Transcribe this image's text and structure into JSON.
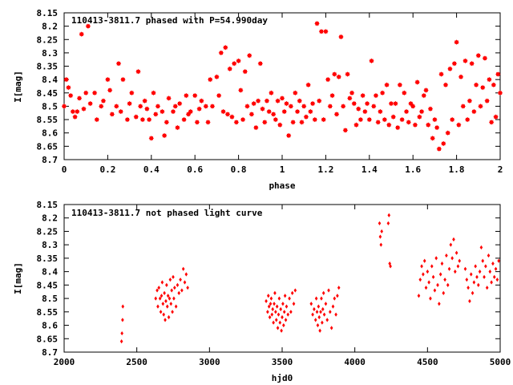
{
  "chart_data": [
    {
      "type": "scatter",
      "title": "110413-3811.7 phased with P=54.990day",
      "xlabel": "phase",
      "ylabel": "I[mag]",
      "xlim": [
        0,
        2
      ],
      "ylim": [
        8.15,
        8.7
      ],
      "y_inverted": true,
      "grid": false,
      "marker_color": "#ff0000",
      "x_ticks": [
        "0",
        "0.2",
        "0.4",
        "0.6",
        "0.8",
        "1",
        "1.2",
        "1.4",
        "1.6",
        "1.8",
        "2"
      ],
      "y_ticks": [
        "8.15",
        "8.2",
        "8.25",
        "8.3",
        "8.35",
        "8.4",
        "8.45",
        "8.5",
        "8.55",
        "8.6",
        "8.65",
        "8.7"
      ],
      "points": [
        [
          0.0,
          8.5
        ],
        [
          0.01,
          8.4
        ],
        [
          0.02,
          8.43
        ],
        [
          0.03,
          8.46
        ],
        [
          0.04,
          8.52
        ],
        [
          0.05,
          8.54
        ],
        [
          0.06,
          8.52
        ],
        [
          0.07,
          8.47
        ],
        [
          0.08,
          8.23
        ],
        [
          0.09,
          8.51
        ],
        [
          0.1,
          8.45
        ],
        [
          0.11,
          8.2
        ],
        [
          0.12,
          8.49
        ],
        [
          0.14,
          8.45
        ],
        [
          0.15,
          8.55
        ],
        [
          0.17,
          8.5
        ],
        [
          0.18,
          8.48
        ],
        [
          0.2,
          8.4
        ],
        [
          0.21,
          8.44
        ],
        [
          0.22,
          8.53
        ],
        [
          0.24,
          8.5
        ],
        [
          0.25,
          8.34
        ],
        [
          0.26,
          8.52
        ],
        [
          0.27,
          8.4
        ],
        [
          0.29,
          8.55
        ],
        [
          0.3,
          8.49
        ],
        [
          0.31,
          8.45
        ],
        [
          0.33,
          8.54
        ],
        [
          0.34,
          8.37
        ],
        [
          0.35,
          8.5
        ],
        [
          0.36,
          8.55
        ],
        [
          0.37,
          8.48
        ],
        [
          0.38,
          8.51
        ],
        [
          0.39,
          8.55
        ],
        [
          0.4,
          8.62
        ],
        [
          0.41,
          8.45
        ],
        [
          0.42,
          8.53
        ],
        [
          0.43,
          8.5
        ],
        [
          0.45,
          8.52
        ],
        [
          0.46,
          8.61
        ],
        [
          0.47,
          8.56
        ],
        [
          0.48,
          8.47
        ],
        [
          0.5,
          8.52
        ],
        [
          0.51,
          8.5
        ],
        [
          0.52,
          8.58
        ],
        [
          0.53,
          8.49
        ],
        [
          0.55,
          8.55
        ],
        [
          0.56,
          8.46
        ],
        [
          0.57,
          8.53
        ],
        [
          0.58,
          8.52
        ],
        [
          0.6,
          8.46
        ],
        [
          0.61,
          8.56
        ],
        [
          0.62,
          8.51
        ],
        [
          0.63,
          8.48
        ],
        [
          0.65,
          8.5
        ],
        [
          0.66,
          8.56
        ],
        [
          0.67,
          8.4
        ],
        [
          0.68,
          8.5
        ],
        [
          0.7,
          8.39
        ],
        [
          0.71,
          8.46
        ],
        [
          0.72,
          8.3
        ],
        [
          0.73,
          8.52
        ],
        [
          0.74,
          8.28
        ],
        [
          0.75,
          8.53
        ],
        [
          0.76,
          8.36
        ],
        [
          0.77,
          8.54
        ],
        [
          0.78,
          8.34
        ],
        [
          0.79,
          8.56
        ],
        [
          0.8,
          8.33
        ],
        [
          0.81,
          8.44
        ],
        [
          0.82,
          8.55
        ],
        [
          0.83,
          8.37
        ],
        [
          0.84,
          8.5
        ],
        [
          0.85,
          8.31
        ],
        [
          0.86,
          8.53
        ],
        [
          0.87,
          8.49
        ],
        [
          0.88,
          8.58
        ],
        [
          0.89,
          8.48
        ],
        [
          0.9,
          8.34
        ],
        [
          0.91,
          8.51
        ],
        [
          0.92,
          8.56
        ],
        [
          0.93,
          8.48
        ],
        [
          0.94,
          8.52
        ],
        [
          0.95,
          8.45
        ],
        [
          0.96,
          8.53
        ],
        [
          0.97,
          8.55
        ],
        [
          0.98,
          8.48
        ],
        [
          0.99,
          8.57
        ],
        [
          1.0,
          8.47
        ],
        [
          1.01,
          8.52
        ],
        [
          1.02,
          8.49
        ],
        [
          1.03,
          8.61
        ],
        [
          1.04,
          8.5
        ],
        [
          1.05,
          8.56
        ],
        [
          1.06,
          8.45
        ],
        [
          1.07,
          8.52
        ],
        [
          1.08,
          8.48
        ],
        [
          1.09,
          8.56
        ],
        [
          1.1,
          8.5
        ],
        [
          1.11,
          8.54
        ],
        [
          1.12,
          8.42
        ],
        [
          1.13,
          8.52
        ],
        [
          1.14,
          8.49
        ],
        [
          1.15,
          8.55
        ],
        [
          1.16,
          8.19
        ],
        [
          1.17,
          8.48
        ],
        [
          1.18,
          8.22
        ],
        [
          1.19,
          8.55
        ],
        [
          1.2,
          8.22
        ],
        [
          1.21,
          8.4
        ],
        [
          1.22,
          8.5
        ],
        [
          1.23,
          8.46
        ],
        [
          1.24,
          8.38
        ],
        [
          1.25,
          8.53
        ],
        [
          1.26,
          8.39
        ],
        [
          1.27,
          8.24
        ],
        [
          1.28,
          8.5
        ],
        [
          1.29,
          8.59
        ],
        [
          1.3,
          8.38
        ],
        [
          1.31,
          8.47
        ],
        [
          1.32,
          8.45
        ],
        [
          1.33,
          8.49
        ],
        [
          1.34,
          8.57
        ],
        [
          1.35,
          8.51
        ],
        [
          1.36,
          8.55
        ],
        [
          1.37,
          8.46
        ],
        [
          1.38,
          8.52
        ],
        [
          1.39,
          8.49
        ],
        [
          1.4,
          8.55
        ],
        [
          1.41,
          8.33
        ],
        [
          1.42,
          8.5
        ],
        [
          1.43,
          8.46
        ],
        [
          1.44,
          8.56
        ],
        [
          1.45,
          8.52
        ],
        [
          1.46,
          8.45
        ],
        [
          1.47,
          8.55
        ],
        [
          1.48,
          8.42
        ],
        [
          1.49,
          8.57
        ],
        [
          1.5,
          8.49
        ],
        [
          1.51,
          8.54
        ],
        [
          1.52,
          8.49
        ],
        [
          1.53,
          8.58
        ],
        [
          1.54,
          8.42
        ],
        [
          1.55,
          8.55
        ],
        [
          1.56,
          8.45
        ],
        [
          1.57,
          8.52
        ],
        [
          1.58,
          8.56
        ],
        [
          1.59,
          8.49
        ],
        [
          1.6,
          8.5
        ],
        [
          1.61,
          8.57
        ],
        [
          1.62,
          8.41
        ],
        [
          1.63,
          8.54
        ],
        [
          1.64,
          8.52
        ],
        [
          1.65,
          8.46
        ],
        [
          1.66,
          8.44
        ],
        [
          1.67,
          8.57
        ],
        [
          1.68,
          8.51
        ],
        [
          1.69,
          8.62
        ],
        [
          1.7,
          8.55
        ],
        [
          1.71,
          8.58
        ],
        [
          1.72,
          8.66
        ],
        [
          1.73,
          8.38
        ],
        [
          1.74,
          8.64
        ],
        [
          1.75,
          8.42
        ],
        [
          1.76,
          8.6
        ],
        [
          1.77,
          8.36
        ],
        [
          1.78,
          8.55
        ],
        [
          1.79,
          8.34
        ],
        [
          1.8,
          8.26
        ],
        [
          1.81,
          8.57
        ],
        [
          1.82,
          8.39
        ],
        [
          1.83,
          8.5
        ],
        [
          1.84,
          8.33
        ],
        [
          1.85,
          8.55
        ],
        [
          1.86,
          8.48
        ],
        [
          1.87,
          8.34
        ],
        [
          1.88,
          8.52
        ],
        [
          1.89,
          8.42
        ],
        [
          1.9,
          8.31
        ],
        [
          1.91,
          8.5
        ],
        [
          1.92,
          8.43
        ],
        [
          1.93,
          8.32
        ],
        [
          1.94,
          8.48
        ],
        [
          1.95,
          8.4
        ],
        [
          1.96,
          8.56
        ],
        [
          1.97,
          8.42
        ],
        [
          1.98,
          8.54
        ],
        [
          1.99,
          8.38
        ],
        [
          2.0,
          8.45
        ]
      ]
    },
    {
      "type": "scatter",
      "title": "110413-3811.7 not phased light curve",
      "xlabel": "hjd0",
      "ylabel": "I[mag]",
      "xlim": [
        2000,
        5000
      ],
      "ylim": [
        8.15,
        8.7
      ],
      "y_inverted": true,
      "grid": false,
      "marker_color": "#ff0000",
      "x_ticks": [
        "2000",
        "2500",
        "3000",
        "3500",
        "4000",
        "4500",
        "5000"
      ],
      "y_ticks": [
        "8.15",
        "8.2",
        "8.25",
        "8.3",
        "8.35",
        "8.4",
        "8.45",
        "8.5",
        "8.55",
        "8.6",
        "8.65",
        "8.7"
      ],
      "points": [
        [
          2395,
          8.66
        ],
        [
          2398,
          8.63
        ],
        [
          2402,
          8.58
        ],
        [
          2404,
          8.53
        ],
        [
          2630,
          8.5
        ],
        [
          2640,
          8.47
        ],
        [
          2645,
          8.53
        ],
        [
          2652,
          8.46
        ],
        [
          2660,
          8.5
        ],
        [
          2665,
          8.55
        ],
        [
          2670,
          8.49
        ],
        [
          2675,
          8.44
        ],
        [
          2680,
          8.52
        ],
        [
          2685,
          8.56
        ],
        [
          2690,
          8.48
        ],
        [
          2695,
          8.58
        ],
        [
          2700,
          8.51
        ],
        [
          2705,
          8.45
        ],
        [
          2710,
          8.53
        ],
        [
          2715,
          8.49
        ],
        [
          2720,
          8.57
        ],
        [
          2725,
          8.5
        ],
        [
          2730,
          8.43
        ],
        [
          2735,
          8.52
        ],
        [
          2740,
          8.47
        ],
        [
          2745,
          8.55
        ],
        [
          2750,
          8.42
        ],
        [
          2755,
          8.5
        ],
        [
          2760,
          8.46
        ],
        [
          2770,
          8.53
        ],
        [
          2780,
          8.45
        ],
        [
          2790,
          8.48
        ],
        [
          2800,
          8.43
        ],
        [
          2810,
          8.47
        ],
        [
          2820,
          8.39
        ],
        [
          2830,
          8.44
        ],
        [
          2840,
          8.41
        ],
        [
          2850,
          8.46
        ],
        [
          3390,
          8.51
        ],
        [
          3400,
          8.55
        ],
        [
          3405,
          8.49
        ],
        [
          3410,
          8.53
        ],
        [
          3415,
          8.57
        ],
        [
          3420,
          8.52
        ],
        [
          3425,
          8.5
        ],
        [
          3430,
          8.56
        ],
        [
          3435,
          8.54
        ],
        [
          3440,
          8.59
        ],
        [
          3445,
          8.52
        ],
        [
          3450,
          8.48
        ],
        [
          3455,
          8.55
        ],
        [
          3460,
          8.58
        ],
        [
          3465,
          8.53
        ],
        [
          3470,
          8.61
        ],
        [
          3475,
          8.56
        ],
        [
          3480,
          8.5
        ],
        [
          3485,
          8.59
        ],
        [
          3490,
          8.54
        ],
        [
          3495,
          8.62
        ],
        [
          3500,
          8.57
        ],
        [
          3505,
          8.52
        ],
        [
          3510,
          8.6
        ],
        [
          3515,
          8.55
        ],
        [
          3520,
          8.49
        ],
        [
          3525,
          8.58
        ],
        [
          3530,
          8.53
        ],
        [
          3540,
          8.56
        ],
        [
          3550,
          8.5
        ],
        [
          3560,
          8.55
        ],
        [
          3570,
          8.48
        ],
        [
          3580,
          8.52
        ],
        [
          3590,
          8.47
        ],
        [
          3700,
          8.52
        ],
        [
          3710,
          8.56
        ],
        [
          3720,
          8.54
        ],
        [
          3730,
          8.58
        ],
        [
          3735,
          8.5
        ],
        [
          3740,
          8.55
        ],
        [
          3745,
          8.6
        ],
        [
          3750,
          8.53
        ],
        [
          3755,
          8.57
        ],
        [
          3760,
          8.62
        ],
        [
          3765,
          8.55
        ],
        [
          3770,
          8.5
        ],
        [
          3775,
          8.59
        ],
        [
          3780,
          8.54
        ],
        [
          3785,
          8.48
        ],
        [
          3790,
          8.56
        ],
        [
          3800,
          8.52
        ],
        [
          3810,
          8.58
        ],
        [
          3820,
          8.47
        ],
        [
          3830,
          8.55
        ],
        [
          3840,
          8.61
        ],
        [
          3850,
          8.53
        ],
        [
          3860,
          8.5
        ],
        [
          3870,
          8.56
        ],
        [
          3880,
          8.49
        ],
        [
          3890,
          8.46
        ],
        [
          4170,
          8.22
        ],
        [
          4175,
          8.27
        ],
        [
          4180,
          8.3
        ],
        [
          4185,
          8.25
        ],
        [
          4230,
          8.22
        ],
        [
          4235,
          8.19
        ],
        [
          4240,
          8.37
        ],
        [
          4245,
          8.38
        ],
        [
          4440,
          8.49
        ],
        [
          4450,
          8.43
        ],
        [
          4460,
          8.38
        ],
        [
          4470,
          8.41
        ],
        [
          4480,
          8.36
        ],
        [
          4490,
          8.46
        ],
        [
          4500,
          8.4
        ],
        [
          4510,
          8.44
        ],
        [
          4520,
          8.5
        ],
        [
          4530,
          8.38
        ],
        [
          4540,
          8.42
        ],
        [
          4550,
          8.47
        ],
        [
          4560,
          8.35
        ],
        [
          4570,
          8.45
        ],
        [
          4580,
          8.52
        ],
        [
          4590,
          8.41
        ],
        [
          4600,
          8.37
        ],
        [
          4610,
          8.48
        ],
        [
          4620,
          8.43
        ],
        [
          4630,
          8.34
        ],
        [
          4640,
          8.45
        ],
        [
          4650,
          8.39
        ],
        [
          4660,
          8.3
        ],
        [
          4670,
          8.35
        ],
        [
          4680,
          8.28
        ],
        [
          4690,
          8.4
        ],
        [
          4700,
          8.33
        ],
        [
          4710,
          8.38
        ],
        [
          4720,
          8.36
        ],
        [
          4760,
          8.39
        ],
        [
          4770,
          8.43
        ],
        [
          4780,
          8.46
        ],
        [
          4790,
          8.51
        ],
        [
          4800,
          8.41
        ],
        [
          4810,
          8.48
        ],
        [
          4820,
          8.44
        ],
        [
          4830,
          8.38
        ],
        [
          4840,
          8.42
        ],
        [
          4850,
          8.45
        ],
        [
          4860,
          8.4
        ],
        [
          4870,
          8.31
        ],
        [
          4880,
          8.36
        ],
        [
          4890,
          8.42
        ],
        [
          4900,
          8.38
        ],
        [
          4910,
          8.46
        ],
        [
          4920,
          8.34
        ],
        [
          4930,
          8.4
        ],
        [
          4940,
          8.44
        ],
        [
          4950,
          8.37
        ],
        [
          4960,
          8.42
        ],
        [
          4970,
          8.39
        ],
        [
          4980,
          8.43
        ],
        [
          4990,
          8.36
        ]
      ]
    }
  ]
}
